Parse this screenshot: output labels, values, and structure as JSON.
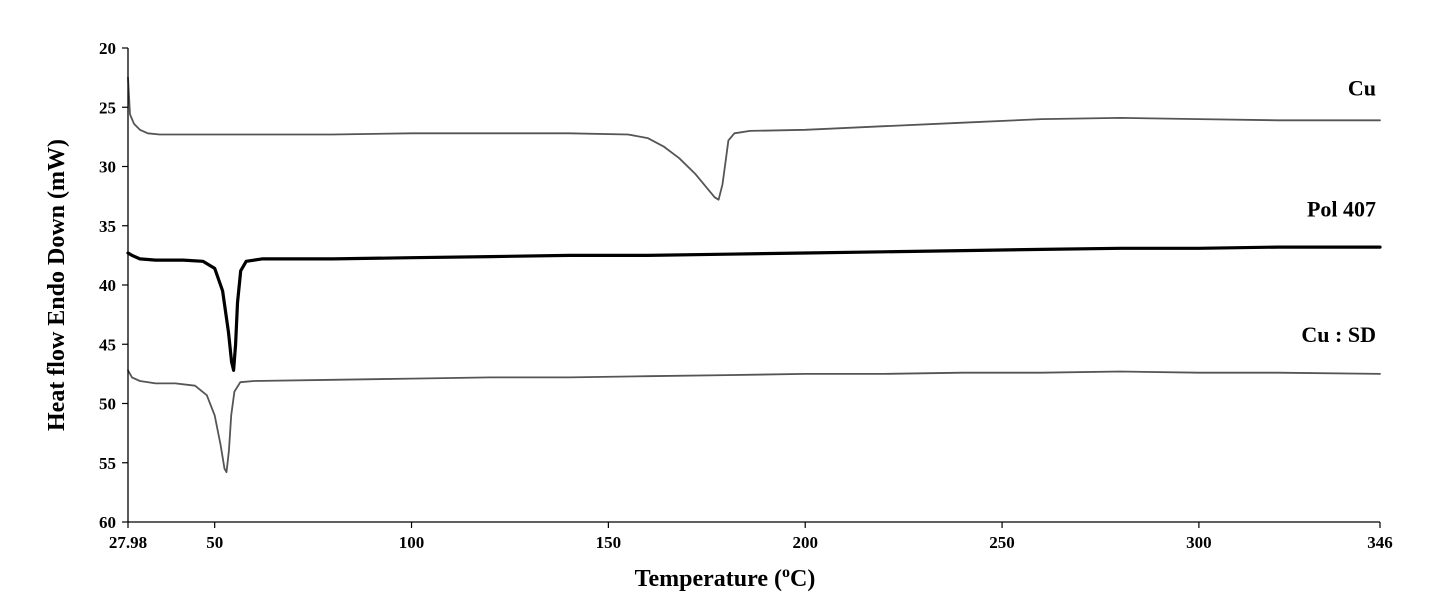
{
  "chart_data": {
    "type": "line",
    "title": "",
    "xlabel": "Temperature (",
    "xlabel_sup": "o",
    "xlabel_end": "C)",
    "ylabel": "Heat flow Endo Down (mW)",
    "xlim": [
      27.98,
      346
    ],
    "ylim": [
      20,
      60
    ],
    "y_inverted": true,
    "grid": false,
    "x_ticks": [
      27.98,
      50,
      100,
      150,
      200,
      250,
      300,
      346
    ],
    "x_tick_labels": [
      "27.98",
      "50",
      "100",
      "150",
      "200",
      "250",
      "300",
      "346"
    ],
    "y_ticks": [
      20,
      25,
      30,
      35,
      40,
      45,
      50,
      55,
      60
    ],
    "y_tick_labels": [
      "20",
      "25",
      "30",
      "35",
      "40",
      "45",
      "50",
      "55",
      "60"
    ],
    "series": [
      {
        "name": "Cu",
        "color": "#555555",
        "points": [
          [
            27.98,
            22.5
          ],
          [
            28.5,
            25.6
          ],
          [
            29.5,
            26.4
          ],
          [
            31,
            26.9
          ],
          [
            33,
            27.2
          ],
          [
            36,
            27.3
          ],
          [
            45,
            27.3
          ],
          [
            60,
            27.3
          ],
          [
            80,
            27.3
          ],
          [
            100,
            27.2
          ],
          [
            120,
            27.2
          ],
          [
            140,
            27.2
          ],
          [
            155,
            27.3
          ],
          [
            160,
            27.6
          ],
          [
            164,
            28.3
          ],
          [
            168,
            29.3
          ],
          [
            172,
            30.6
          ],
          [
            175,
            31.8
          ],
          [
            177,
            32.6
          ],
          [
            178,
            32.8
          ],
          [
            179,
            31.5
          ],
          [
            179.8,
            29.5
          ],
          [
            180.5,
            27.8
          ],
          [
            182,
            27.2
          ],
          [
            186,
            27.0
          ],
          [
            200,
            26.9
          ],
          [
            220,
            26.6
          ],
          [
            240,
            26.3
          ],
          [
            260,
            26.0
          ],
          [
            280,
            25.9
          ],
          [
            300,
            26.0
          ],
          [
            320,
            26.1
          ],
          [
            346,
            26.1
          ]
        ],
        "width": 1.8
      },
      {
        "name": "Pol 407",
        "color": "#000000",
        "points": [
          [
            27.98,
            37.3
          ],
          [
            29,
            37.5
          ],
          [
            31,
            37.8
          ],
          [
            35,
            37.9
          ],
          [
            42,
            37.9
          ],
          [
            47,
            38.0
          ],
          [
            50,
            38.6
          ],
          [
            52,
            40.5
          ],
          [
            53.5,
            44.0
          ],
          [
            54.3,
            46.5
          ],
          [
            54.8,
            47.2
          ],
          [
            55.3,
            45.0
          ],
          [
            55.8,
            41.5
          ],
          [
            56.6,
            38.8
          ],
          [
            58,
            38.0
          ],
          [
            62,
            37.8
          ],
          [
            80,
            37.8
          ],
          [
            100,
            37.7
          ],
          [
            120,
            37.6
          ],
          [
            140,
            37.5
          ],
          [
            160,
            37.5
          ],
          [
            180,
            37.4
          ],
          [
            200,
            37.3
          ],
          [
            220,
            37.2
          ],
          [
            240,
            37.1
          ],
          [
            260,
            37.0
          ],
          [
            280,
            36.9
          ],
          [
            300,
            36.9
          ],
          [
            320,
            36.8
          ],
          [
            346,
            36.8
          ]
        ],
        "width": 3.2
      },
      {
        "name": "Cu : SD",
        "color": "#555555",
        "points": [
          [
            27.98,
            47.2
          ],
          [
            29,
            47.8
          ],
          [
            31,
            48.1
          ],
          [
            35,
            48.3
          ],
          [
            40,
            48.3
          ],
          [
            45,
            48.5
          ],
          [
            48,
            49.3
          ],
          [
            50,
            51.0
          ],
          [
            51.5,
            53.5
          ],
          [
            52.5,
            55.5
          ],
          [
            53,
            55.8
          ],
          [
            53.6,
            54.0
          ],
          [
            54.2,
            51.0
          ],
          [
            55,
            49.0
          ],
          [
            56.5,
            48.2
          ],
          [
            60,
            48.1
          ],
          [
            80,
            48.0
          ],
          [
            100,
            47.9
          ],
          [
            120,
            47.8
          ],
          [
            140,
            47.8
          ],
          [
            160,
            47.7
          ],
          [
            180,
            47.6
          ],
          [
            200,
            47.5
          ],
          [
            220,
            47.5
          ],
          [
            240,
            47.4
          ],
          [
            260,
            47.4
          ],
          [
            280,
            47.3
          ],
          [
            300,
            47.4
          ],
          [
            320,
            47.4
          ],
          [
            346,
            47.5
          ]
        ],
        "width": 1.8
      }
    ]
  }
}
